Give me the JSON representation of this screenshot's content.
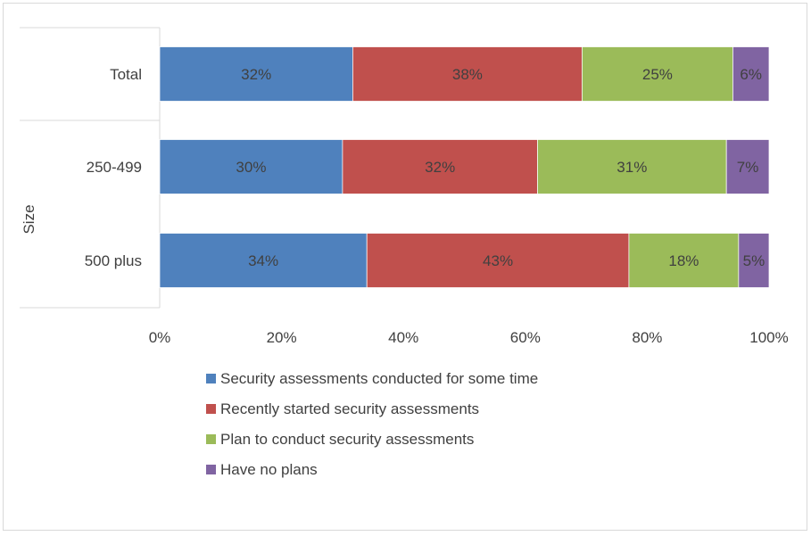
{
  "chart_data": {
    "type": "bar",
    "orientation": "horizontal",
    "stacked": "percent",
    "title": "",
    "ylabel": "Size",
    "xlabel": "",
    "categories": [
      "Total",
      "250-499",
      "500 plus"
    ],
    "series": [
      {
        "name": "Security assessments conducted for some time",
        "color": "#4f81bd",
        "values": [
          32,
          30,
          34
        ],
        "labels": [
          "32%",
          "30%",
          "34%"
        ]
      },
      {
        "name": "Recently started security assessments",
        "color": "#c0504d",
        "values": [
          38,
          32,
          43
        ],
        "labels": [
          "38%",
          "32%",
          "43%"
        ]
      },
      {
        "name": "Plan to conduct security assessments",
        "color": "#9bbb59",
        "values": [
          25,
          31,
          18
        ],
        "labels": [
          "25%",
          "31%",
          "18%"
        ]
      },
      {
        "name": "Have no plans",
        "color": "#8064a2",
        "values": [
          6,
          7,
          5
        ],
        "labels": [
          "6%",
          "7%",
          "5%"
        ]
      }
    ],
    "xlim": [
      0,
      100
    ],
    "xticks": [
      "0%",
      "20%",
      "40%",
      "60%",
      "80%",
      "100%"
    ],
    "grid": false,
    "legend_position": "bottom"
  }
}
